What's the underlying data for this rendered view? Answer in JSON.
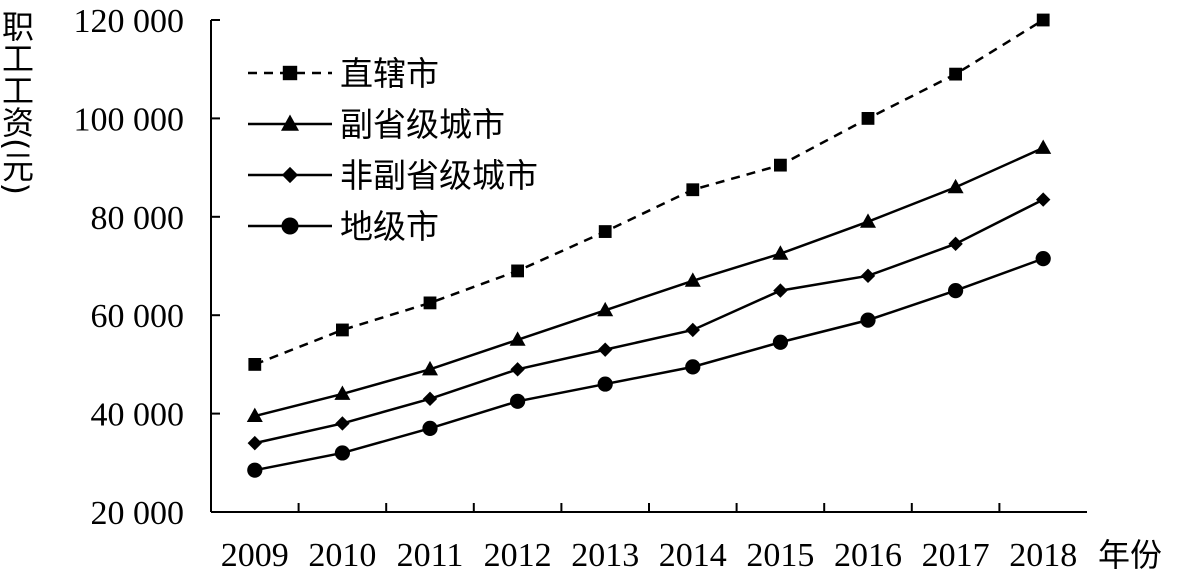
{
  "chart_data": {
    "type": "line",
    "title": "",
    "xlabel": "年份",
    "ylabel": "职工工资(元)",
    "ylim": [
      20000,
      120000
    ],
    "yticks": [
      20000,
      40000,
      60000,
      80000,
      100000,
      120000
    ],
    "ytick_labels": [
      "20 000",
      "40 000",
      "60 000",
      "80 000",
      "100 000",
      "120 000"
    ],
    "categories": [
      "2009",
      "2010",
      "2011",
      "2012",
      "2013",
      "2014",
      "2015",
      "2016",
      "2017",
      "2018"
    ],
    "legend_position": "top-left",
    "grid": false,
    "series": [
      {
        "name": "直辖市",
        "style": "dashed",
        "marker": "square",
        "values": [
          50000,
          57000,
          62500,
          69000,
          77000,
          85500,
          90500,
          100000,
          109000,
          120000
        ]
      },
      {
        "name": "副省级城市",
        "style": "solid",
        "marker": "triangle",
        "values": [
          39500,
          44000,
          49000,
          55000,
          61000,
          67000,
          72500,
          79000,
          86000,
          94000
        ]
      },
      {
        "name": "非副省级城市",
        "style": "solid",
        "marker": "diamond",
        "values": [
          34000,
          38000,
          43000,
          49000,
          53000,
          57000,
          65000,
          68000,
          74500,
          83500
        ]
      },
      {
        "name": "地级市",
        "style": "solid",
        "marker": "circle",
        "values": [
          28500,
          32000,
          37000,
          42500,
          46000,
          49500,
          54500,
          59000,
          65000,
          71500
        ]
      }
    ]
  }
}
